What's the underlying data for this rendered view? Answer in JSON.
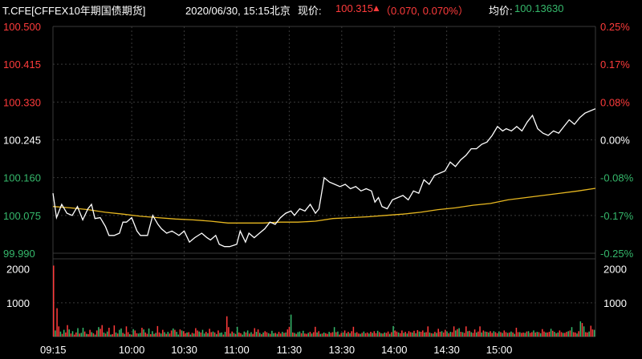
{
  "header": {
    "symbol": "T.CFE[CFFEX10年期国债期货]",
    "datetime": "2020/06/30, 15:15北京",
    "price_label": "现价:",
    "price": "100.315",
    "change": "（0.070, 0.070%）",
    "avg_label": "均价:",
    "avg": "100.13630"
  },
  "colors": {
    "up": "#ff3b3b",
    "down": "#35b86b",
    "price_line": "#ffffff",
    "avg_line": "#e8b820",
    "grid": "#3a3a3a",
    "neutral": "#ffffff"
  },
  "chart_data": [
    {
      "type": "line",
      "title": "",
      "xlabel": "",
      "ylabel": "",
      "x_ticks": [
        "09:15",
        "10:00",
        "10:30",
        "11:00",
        "11:30",
        "13:30",
        "14:00",
        "14:30",
        "15:00"
      ],
      "x_tick_index": [
        0,
        45,
        75,
        105,
        135,
        165,
        195,
        225,
        255
      ],
      "y_ticks": [
        "100.500",
        "100.415",
        "100.330",
        "100.245",
        "100.160",
        "100.075",
        "99.990"
      ],
      "y_ticks_right": [
        "0.25%",
        "0.17%",
        "0.08%",
        "0.00%",
        "-0.08%",
        "-0.17%",
        "-0.25%"
      ],
      "ylim": [
        99.99,
        100.5
      ],
      "reference": 100.245,
      "series": [
        {
          "key": "price",
          "points": [
            [
              0,
              100.125
            ],
            [
              2,
              100.07
            ],
            [
              5,
              100.1
            ],
            [
              8,
              100.08
            ],
            [
              11,
              100.075
            ],
            [
              14,
              100.095
            ],
            [
              17,
              100.065
            ],
            [
              20,
              100.09
            ],
            [
              22,
              100.1
            ],
            [
              24,
              100.068
            ],
            [
              27,
              100.07
            ],
            [
              30,
              100.05
            ],
            [
              32,
              100.03
            ],
            [
              35,
              100.03
            ],
            [
              38,
              100.035
            ],
            [
              40,
              100.06
            ],
            [
              42,
              100.06
            ],
            [
              45,
              100.07
            ],
            [
              48,
              100.04
            ],
            [
              50,
              100.03
            ],
            [
              54,
              100.03
            ],
            [
              57,
              100.075
            ],
            [
              60,
              100.055
            ],
            [
              62,
              100.045
            ],
            [
              65,
              100.035
            ],
            [
              68,
              100.04
            ],
            [
              70,
              100.035
            ],
            [
              72,
              100.03
            ],
            [
              75,
              100.04
            ],
            [
              78,
              100.015
            ],
            [
              81,
              100.025
            ],
            [
              85,
              100.035
            ],
            [
              88,
              100.025
            ],
            [
              90,
              100.02
            ],
            [
              93,
              100.03
            ],
            [
              95,
              100.01
            ],
            [
              98,
              100.005
            ],
            [
              101,
              100.005
            ],
            [
              105,
              100.01
            ],
            [
              107,
              100.04
            ],
            [
              110,
              100.015
            ],
            [
              112,
              100.035
            ],
            [
              115,
              100.025
            ],
            [
              118,
              100.035
            ],
            [
              121,
              100.045
            ],
            [
              124,
              100.06
            ],
            [
              127,
              100.055
            ],
            [
              130,
              100.07
            ],
            [
              133,
              100.08
            ],
            [
              136,
              100.085
            ],
            [
              138,
              100.075
            ],
            [
              141,
              100.09
            ],
            [
              144,
              100.085
            ],
            [
              147,
              100.1
            ],
            [
              150,
              100.08
            ],
            [
              152,
              100.09
            ],
            [
              155,
              100.16
            ],
            [
              158,
              100.15
            ],
            [
              161,
              100.145
            ],
            [
              164,
              100.14
            ],
            [
              167,
              100.145
            ],
            [
              170,
              100.135
            ],
            [
              173,
              100.14
            ],
            [
              176,
              100.13
            ],
            [
              179,
              100.135
            ],
            [
              182,
              100.13
            ],
            [
              184,
              100.105
            ],
            [
              186,
              100.115
            ],
            [
              188,
              100.095
            ],
            [
              191,
              100.09
            ],
            [
              194,
              100.11
            ],
            [
              197,
              100.115
            ],
            [
              200,
              100.12
            ],
            [
              203,
              100.11
            ],
            [
              206,
              100.13
            ],
            [
              209,
              100.125
            ],
            [
              212,
              100.155
            ],
            [
              215,
              100.145
            ],
            [
              218,
              100.165
            ],
            [
              221,
              100.17
            ],
            [
              224,
              100.175
            ],
            [
              227,
              100.195
            ],
            [
              230,
              100.185
            ],
            [
              233,
              100.2
            ],
            [
              236,
              100.21
            ],
            [
              239,
              100.225
            ],
            [
              242,
              100.225
            ],
            [
              245,
              100.235
            ],
            [
              248,
              100.24
            ],
            [
              251,
              100.255
            ],
            [
              254,
              100.275
            ],
            [
              257,
              100.265
            ],
            [
              259,
              100.27
            ],
            [
              262,
              100.265
            ],
            [
              265,
              100.275
            ],
            [
              268,
              100.265
            ],
            [
              271,
              100.285
            ],
            [
              274,
              100.3
            ],
            [
              277,
              100.27
            ],
            [
              280,
              100.26
            ],
            [
              283,
              100.255
            ],
            [
              286,
              100.265
            ],
            [
              289,
              100.26
            ],
            [
              292,
              100.275
            ],
            [
              295,
              100.29
            ],
            [
              298,
              100.28
            ],
            [
              301,
              100.295
            ],
            [
              304,
              100.305
            ],
            [
              307,
              100.31
            ],
            [
              310,
              100.315
            ]
          ]
        },
        {
          "key": "avg",
          "points": [
            [
              0,
              100.095
            ],
            [
              10,
              100.092
            ],
            [
              20,
              100.088
            ],
            [
              30,
              100.082
            ],
            [
              40,
              100.078
            ],
            [
              50,
              100.073
            ],
            [
              60,
              100.07
            ],
            [
              70,
              100.067
            ],
            [
              80,
              100.065
            ],
            [
              90,
              100.062
            ],
            [
              100,
              100.058
            ],
            [
              110,
              100.058
            ],
            [
              120,
              100.058
            ],
            [
              130,
              100.06
            ],
            [
              140,
              100.06
            ],
            [
              150,
              100.062
            ],
            [
              160,
              100.068
            ],
            [
              170,
              100.07
            ],
            [
              180,
              100.072
            ],
            [
              190,
              100.075
            ],
            [
              200,
              100.078
            ],
            [
              210,
              100.082
            ],
            [
              220,
              100.088
            ],
            [
              230,
              100.092
            ],
            [
              240,
              100.098
            ],
            [
              250,
              100.102
            ],
            [
              260,
              100.11
            ],
            [
              270,
              100.115
            ],
            [
              280,
              100.12
            ],
            [
              290,
              100.125
            ],
            [
              300,
              100.13
            ],
            [
              310,
              100.136
            ]
          ]
        }
      ],
      "n_minutes": 311
    },
    {
      "type": "bar",
      "title": "",
      "y_ticks": [
        "2000",
        "1000"
      ],
      "ylim": [
        0,
        2300
      ],
      "values": [
        2100,
        180,
        840,
        300,
        150,
        80,
        200,
        120,
        340,
        210,
        90,
        160,
        60,
        120,
        250,
        90,
        110,
        260,
        150,
        80,
        70,
        200,
        130,
        100,
        60,
        180,
        280,
        230,
        340,
        120,
        90,
        150,
        260,
        60,
        70,
        330,
        120,
        90,
        200,
        240,
        110,
        80,
        300,
        130,
        70,
        60,
        220,
        180,
        100,
        90,
        110,
        260,
        210,
        120,
        80,
        240,
        70,
        160,
        80,
        110,
        310,
        120,
        90,
        200,
        130,
        80,
        140,
        90,
        180,
        240,
        200,
        140,
        60,
        210,
        180,
        160,
        100,
        120,
        130,
        60,
        110,
        90,
        250,
        180,
        150,
        120,
        200,
        90,
        140,
        100,
        230,
        130,
        150,
        120,
        70,
        180,
        110,
        120,
        60,
        140,
        600,
        280,
        90,
        150,
        110,
        80,
        290,
        120,
        100,
        60,
        150,
        120,
        180,
        90,
        130,
        80,
        250,
        140,
        210,
        110,
        70,
        120,
        160,
        130,
        100,
        80,
        170,
        100,
        110,
        80,
        140,
        90,
        140,
        110,
        120,
        210,
        290,
        650,
        120,
        110,
        80,
        130,
        150,
        100,
        170,
        90,
        80,
        110,
        140,
        90,
        130,
        290,
        120,
        160,
        80,
        90,
        120,
        100,
        80,
        140,
        110,
        130,
        280,
        130,
        150,
        60,
        110,
        120,
        180,
        100,
        140,
        100,
        160,
        290,
        110,
        130,
        90,
        80,
        110,
        150,
        100,
        120,
        90,
        140,
        110,
        160,
        100,
        170,
        130,
        100,
        90,
        120,
        110,
        150,
        80,
        130,
        310,
        180,
        150,
        120,
        100,
        180,
        110,
        140,
        90,
        160,
        130,
        120,
        170,
        100,
        190,
        150,
        140,
        180,
        120,
        130,
        300,
        120,
        100,
        90,
        140,
        110,
        230,
        140,
        160,
        120,
        200,
        150,
        100,
        140,
        130,
        300,
        180,
        220,
        250,
        140,
        130,
        110,
        300,
        160,
        170,
        130,
        110,
        210,
        120,
        150,
        300,
        120,
        180,
        150,
        140,
        120,
        160,
        110,
        160,
        130,
        100,
        150,
        130,
        110,
        180,
        130,
        110,
        120,
        150,
        120,
        80,
        260,
        130,
        130,
        110,
        120,
        110,
        150,
        160,
        110,
        130,
        180,
        120,
        140,
        130,
        100,
        220,
        150,
        120,
        120,
        140,
        230,
        170,
        140,
        100,
        120,
        180,
        130,
        110,
        110,
        140,
        160,
        180,
        280,
        130,
        120,
        90,
        160,
        450,
        400,
        300,
        130,
        120,
        150,
        320,
        210,
        200
      ],
      "up": [
        1,
        0,
        1,
        1,
        0,
        1,
        0,
        1,
        1,
        0,
        1,
        0,
        1,
        1,
        0,
        1,
        0,
        0,
        1,
        0,
        1,
        1,
        0,
        1,
        0,
        1,
        0,
        1,
        1,
        0,
        1,
        0,
        1,
        0,
        1,
        1,
        0,
        1,
        0,
        0,
        1,
        0,
        1,
        1,
        0,
        1,
        0,
        1,
        1,
        0,
        0,
        1,
        0,
        1,
        1,
        0,
        1,
        0,
        1,
        0,
        1,
        1,
        0,
        1,
        0,
        1,
        0,
        1,
        1,
        0,
        1,
        0,
        0,
        1,
        0,
        1,
        1,
        0,
        1,
        0,
        1,
        0,
        1,
        1,
        0,
        1,
        0,
        0,
        1,
        0,
        1,
        1,
        0,
        1,
        0,
        1,
        0,
        0,
        1,
        0,
        1,
        1,
        0,
        1,
        0,
        1,
        0,
        1,
        1,
        0,
        0,
        1,
        0,
        1,
        0,
        1,
        1,
        0,
        1,
        0,
        1,
        0,
        1,
        1,
        0,
        1,
        0,
        0,
        1,
        0,
        1,
        1,
        0,
        1,
        0,
        1,
        1,
        0,
        1,
        0,
        1,
        0,
        0,
        1,
        0,
        1,
        1,
        0,
        1,
        0,
        1,
        1,
        0,
        1,
        0,
        1,
        0,
        1,
        1,
        0,
        1,
        1,
        0,
        1,
        0,
        1,
        1,
        0,
        1,
        0,
        1,
        0,
        1,
        1,
        0,
        1,
        1,
        0,
        1,
        0,
        1,
        1,
        0,
        1,
        0,
        1,
        1,
        0,
        1,
        0,
        1,
        0,
        1,
        1,
        0,
        1,
        0,
        1,
        1,
        0,
        1,
        1,
        0,
        1,
        0,
        1,
        1,
        0,
        1,
        0,
        1,
        0,
        1,
        1,
        0,
        1,
        1,
        0,
        1,
        0,
        1,
        0,
        1,
        1,
        0,
        1,
        1,
        0,
        1,
        0,
        1,
        1,
        0,
        1,
        0,
        1,
        0,
        1,
        1,
        0,
        1,
        0,
        1,
        1,
        0,
        1,
        1,
        0,
        1,
        0,
        1,
        0,
        1,
        1,
        0,
        1,
        1,
        0,
        1,
        0,
        1,
        1,
        0,
        1,
        0,
        1,
        0,
        1,
        1,
        0,
        1,
        1,
        0,
        1,
        0,
        1,
        1,
        0,
        1,
        0,
        1,
        0,
        1,
        1,
        0,
        1,
        1,
        0,
        1,
        0,
        1,
        0,
        1,
        1,
        0,
        1,
        1,
        0,
        1,
        0,
        1,
        1,
        0,
        1,
        0,
        1,
        0,
        1,
        1,
        0,
        1,
        1,
        0,
        1,
        0,
        1,
        1,
        0,
        1,
        1
      ]
    }
  ]
}
